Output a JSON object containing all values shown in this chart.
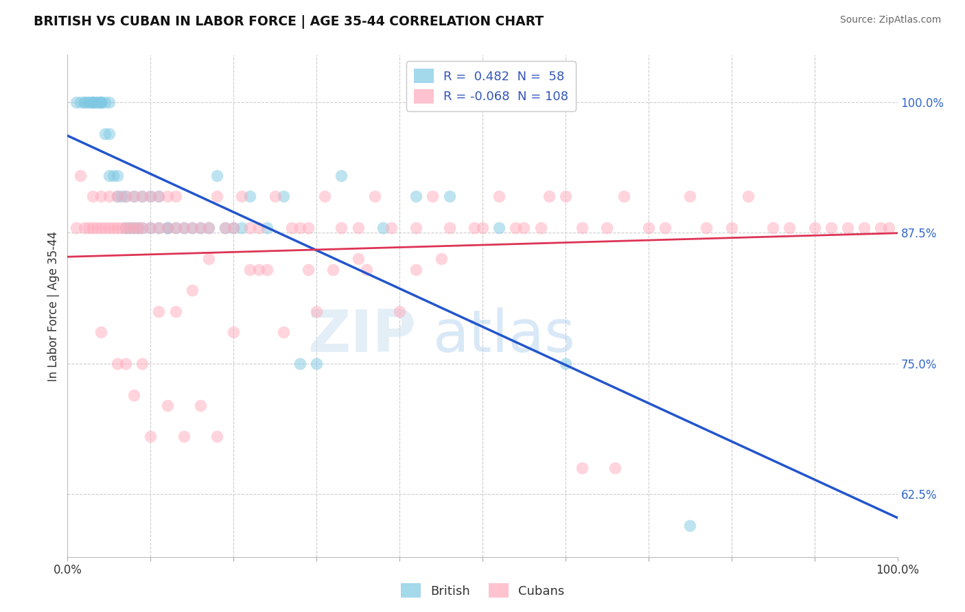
{
  "title": "BRITISH VS CUBAN IN LABOR FORCE | AGE 35-44 CORRELATION CHART",
  "source": "Source: ZipAtlas.com",
  "ylabel": "In Labor Force | Age 35-44",
  "xlim": [
    0.0,
    1.0
  ],
  "ylim": [
    0.565,
    1.045
  ],
  "yticks": [
    0.625,
    0.75,
    0.875,
    1.0
  ],
  "ytick_labels": [
    "62.5%",
    "75.0%",
    "87.5%",
    "100.0%"
  ],
  "xticks": [
    0.0,
    0.1,
    0.2,
    0.3,
    0.4,
    0.5,
    0.6,
    0.7,
    0.8,
    0.9,
    1.0
  ],
  "xtick_labels": [
    "0.0%",
    "",
    "",
    "",
    "",
    "",
    "",
    "",
    "",
    "",
    "100.0%"
  ],
  "british_color": "#7ec8e3",
  "cuban_color": "#ffaabb",
  "british_line_color": "#2255cc",
  "cuban_line_color": "#dd3355",
  "british_R": 0.482,
  "british_N": 58,
  "cuban_R": -0.068,
  "cuban_N": 108,
  "legend_british_label": "British",
  "legend_cuban_label": "Cubans",
  "watermark_text": "ZIPatlas",
  "scatter_size": 160,
  "scatter_alpha": 0.5,
  "british_x": [
    0.01,
    0.015,
    0.02,
    0.02,
    0.025,
    0.025,
    0.03,
    0.03,
    0.03,
    0.035,
    0.035,
    0.04,
    0.04,
    0.04,
    0.045,
    0.045,
    0.05,
    0.05,
    0.05,
    0.055,
    0.06,
    0.06,
    0.065,
    0.07,
    0.07,
    0.075,
    0.08,
    0.08,
    0.085,
    0.09,
    0.09,
    0.1,
    0.1,
    0.11,
    0.11,
    0.12,
    0.12,
    0.13,
    0.14,
    0.15,
    0.16,
    0.17,
    0.18,
    0.19,
    0.2,
    0.21,
    0.22,
    0.24,
    0.26,
    0.28,
    0.3,
    0.33,
    0.38,
    0.42,
    0.46,
    0.52,
    0.6,
    0.75
  ],
  "british_y": [
    1.0,
    1.0,
    1.0,
    1.0,
    1.0,
    1.0,
    1.0,
    1.0,
    1.0,
    1.0,
    1.0,
    1.0,
    1.0,
    1.0,
    1.0,
    0.97,
    1.0,
    0.97,
    0.93,
    0.93,
    0.93,
    0.91,
    0.91,
    0.91,
    0.88,
    0.88,
    0.91,
    0.88,
    0.88,
    0.91,
    0.88,
    0.91,
    0.88,
    0.91,
    0.88,
    0.88,
    0.88,
    0.88,
    0.88,
    0.88,
    0.88,
    0.88,
    0.93,
    0.88,
    0.88,
    0.88,
    0.91,
    0.88,
    0.91,
    0.75,
    0.75,
    0.93,
    0.88,
    0.91,
    0.91,
    0.88,
    0.75,
    0.595
  ],
  "cuban_x": [
    0.01,
    0.015,
    0.02,
    0.025,
    0.03,
    0.03,
    0.035,
    0.04,
    0.04,
    0.045,
    0.05,
    0.05,
    0.055,
    0.06,
    0.06,
    0.065,
    0.07,
    0.07,
    0.075,
    0.08,
    0.08,
    0.085,
    0.09,
    0.09,
    0.1,
    0.1,
    0.11,
    0.11,
    0.12,
    0.12,
    0.13,
    0.13,
    0.14,
    0.15,
    0.16,
    0.17,
    0.18,
    0.19,
    0.2,
    0.21,
    0.22,
    0.23,
    0.25,
    0.27,
    0.29,
    0.31,
    0.33,
    0.35,
    0.37,
    0.39,
    0.42,
    0.44,
    0.46,
    0.49,
    0.52,
    0.54,
    0.57,
    0.6,
    0.62,
    0.65,
    0.67,
    0.7,
    0.72,
    0.75,
    0.77,
    0.8,
    0.82,
    0.85,
    0.87,
    0.9,
    0.92,
    0.94,
    0.96,
    0.98,
    0.99,
    0.3,
    0.35,
    0.4,
    0.45,
    0.5,
    0.55,
    0.58,
    0.62,
    0.66,
    0.07,
    0.09,
    0.11,
    0.13,
    0.15,
    0.17,
    0.2,
    0.23,
    0.26,
    0.29,
    0.1,
    0.12,
    0.14,
    0.16,
    0.18,
    0.08,
    0.06,
    0.04,
    0.22,
    0.24,
    0.28,
    0.32,
    0.36,
    0.42
  ],
  "cuban_y": [
    0.88,
    0.93,
    0.88,
    0.88,
    0.88,
    0.91,
    0.88,
    0.91,
    0.88,
    0.88,
    0.91,
    0.88,
    0.88,
    0.91,
    0.88,
    0.88,
    0.91,
    0.88,
    0.88,
    0.91,
    0.88,
    0.88,
    0.91,
    0.88,
    0.91,
    0.88,
    0.91,
    0.88,
    0.91,
    0.88,
    0.91,
    0.88,
    0.88,
    0.88,
    0.88,
    0.88,
    0.91,
    0.88,
    0.88,
    0.91,
    0.88,
    0.88,
    0.91,
    0.88,
    0.88,
    0.91,
    0.88,
    0.88,
    0.91,
    0.88,
    0.88,
    0.91,
    0.88,
    0.88,
    0.91,
    0.88,
    0.88,
    0.91,
    0.88,
    0.88,
    0.91,
    0.88,
    0.88,
    0.91,
    0.88,
    0.88,
    0.91,
    0.88,
    0.88,
    0.88,
    0.88,
    0.88,
    0.88,
    0.88,
    0.88,
    0.8,
    0.85,
    0.8,
    0.85,
    0.88,
    0.88,
    0.91,
    0.65,
    0.65,
    0.75,
    0.75,
    0.8,
    0.8,
    0.82,
    0.85,
    0.78,
    0.84,
    0.78,
    0.84,
    0.68,
    0.71,
    0.68,
    0.71,
    0.68,
    0.72,
    0.75,
    0.78,
    0.84,
    0.84,
    0.88,
    0.84,
    0.84,
    0.84
  ]
}
